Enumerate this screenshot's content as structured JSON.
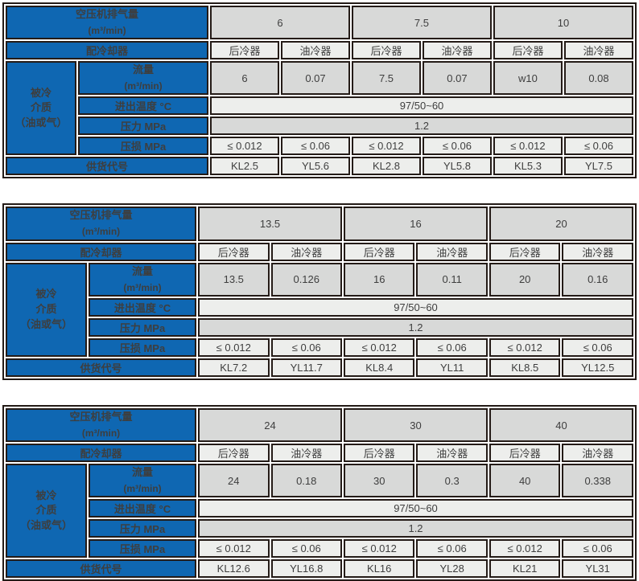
{
  "colors": {
    "header_blue": "#0f67b2",
    "cell_dark_gray": "#d8d9d8",
    "cell_light_gray": "#edeeec",
    "border_dark": "#241b17",
    "value_text": "#3e3e3e",
    "label_text": "#ffffff"
  },
  "labels": {
    "capacity_line1": "空压机排气量",
    "capacity_line2": "(m³/min)",
    "cooler_row": "配冷却器",
    "medium_line1": "被冷",
    "medium_line2": "介质",
    "medium_line3": "（油或气）",
    "flow_line1": "流量",
    "flow_line2": "(m³/min)",
    "temp_row": "进出温度 °C",
    "pressure_row": "压力 MPa",
    "loss_row": "压损 MPa",
    "code_row": "供货代号"
  },
  "tables": [
    {
      "capacities": [
        "6",
        "7.5",
        "10"
      ],
      "cooler_types": [
        "后冷器",
        "油冷器",
        "后冷器",
        "油冷器",
        "后冷器",
        "油冷器"
      ],
      "flow_values": [
        "6",
        "0.07",
        "7.5",
        "0.07",
        "w10",
        "0.08"
      ],
      "temp_value": "97/50~60",
      "pressure_value": "1.2",
      "loss_values": [
        "≤ 0.012",
        "≤ 0.06",
        "≤ 0.012",
        "≤ 0.06",
        "≤ 0.012",
        "≤ 0.06"
      ],
      "supply_codes": [
        "KL2.5",
        "YL5.6",
        "KL2.8",
        "YL5.8",
        "KL5.3",
        "YL7.5"
      ]
    },
    {
      "capacities": [
        "13.5",
        "16",
        "20"
      ],
      "cooler_types": [
        "后冷器",
        "油冷器",
        "后冷器",
        "油冷器",
        "后冷器",
        "油冷器"
      ],
      "flow_values": [
        "13.5",
        "0.126",
        "16",
        "0.11",
        "20",
        "0.16"
      ],
      "temp_value": "97/50~60",
      "pressure_value": "1.2",
      "loss_values": [
        "≤ 0.012",
        "≤ 0.06",
        "≤ 0.012",
        "≤ 0.06",
        "≤ 0.012",
        "≤ 0.06"
      ],
      "supply_codes": [
        "KL7.2",
        "YL11.7",
        "KL8.4",
        "YL11",
        "KL8.5",
        "YL12.5"
      ]
    },
    {
      "capacities": [
        "24",
        "30",
        "40"
      ],
      "cooler_types": [
        "后冷器",
        "油冷器",
        "后冷器",
        "油冷器",
        "后冷器",
        "油冷器"
      ],
      "flow_values": [
        "24",
        "0.18",
        "30",
        "0.3",
        "40",
        "0.338"
      ],
      "temp_value": "97/50~60",
      "pressure_value": "1.2",
      "loss_values": [
        "≤ 0.012",
        "≤ 0.06",
        "≤ 0.012",
        "≤ 0.06",
        "≤ 0.012",
        "≤ 0.06"
      ],
      "supply_codes": [
        "KL12.6",
        "YL16.8",
        "KL16",
        "YL28",
        "KL21",
        "YL31"
      ]
    }
  ]
}
